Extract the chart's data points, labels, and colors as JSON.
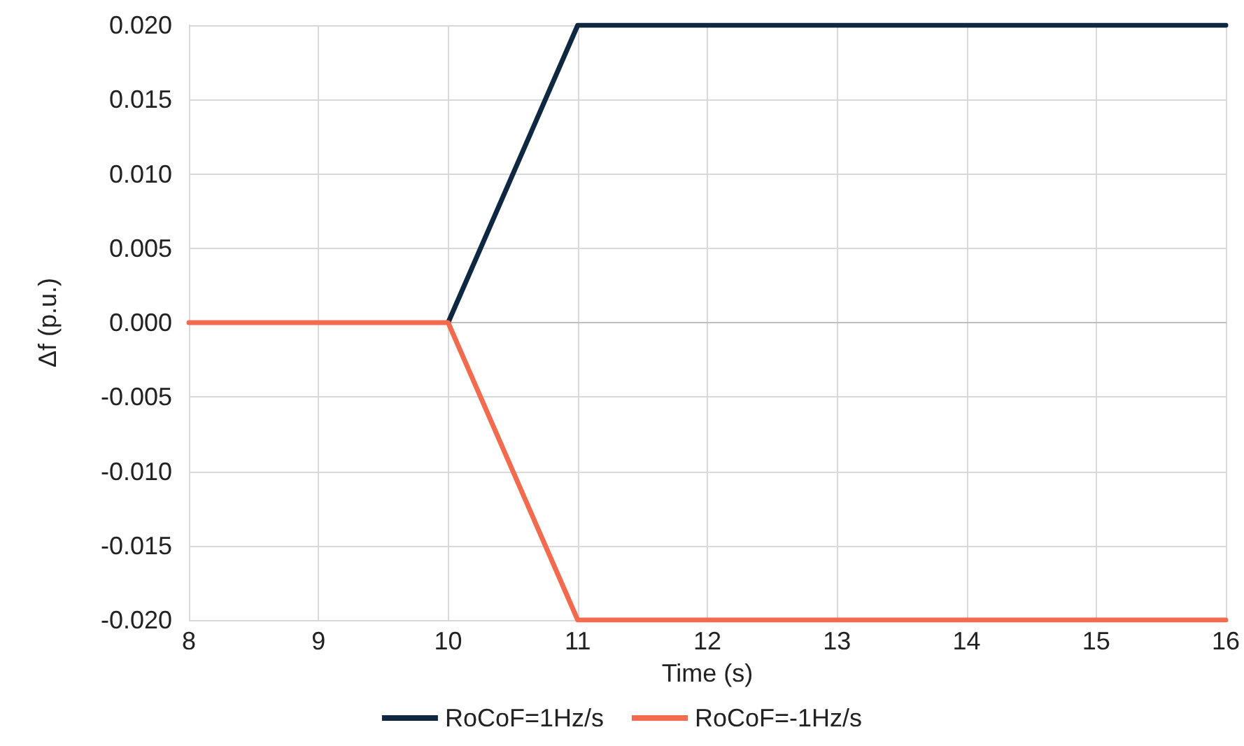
{
  "chart_data": {
    "type": "line",
    "xlabel": "Time (s)",
    "ylabel": "Δf (p.u.)",
    "xlim": [
      8,
      16
    ],
    "xticks": [
      8,
      9,
      10,
      11,
      12,
      13,
      14,
      15,
      16
    ],
    "ylim": [
      -0.02,
      0.02
    ],
    "yticks": [
      {
        "value": -0.02,
        "label": "-0.020"
      },
      {
        "value": -0.015,
        "label": "-0.015"
      },
      {
        "value": -0.01,
        "label": "-0.010"
      },
      {
        "value": -0.005,
        "label": "-0.005"
      },
      {
        "value": 0,
        "label": "0.000"
      },
      {
        "value": 0.005,
        "label": "0.005"
      },
      {
        "value": 0.01,
        "label": "0.010"
      },
      {
        "value": 0.015,
        "label": "0.015"
      },
      {
        "value": 0.02,
        "label": "0.020"
      }
    ],
    "grid": true,
    "legend": "bottom",
    "marker": "none",
    "line_style": "solid",
    "series": [
      {
        "name": "RoCoF=1Hz/s",
        "color": "#0e2841",
        "x": [
          10,
          11,
          16
        ],
        "values": [
          0,
          0.02,
          0.02
        ]
      },
      {
        "name": "RoCoF=-1Hz/s",
        "color": "#f26b4f",
        "x": [
          8,
          10,
          11,
          16
        ],
        "values": [
          0,
          0,
          -0.02,
          -0.02
        ]
      }
    ]
  }
}
